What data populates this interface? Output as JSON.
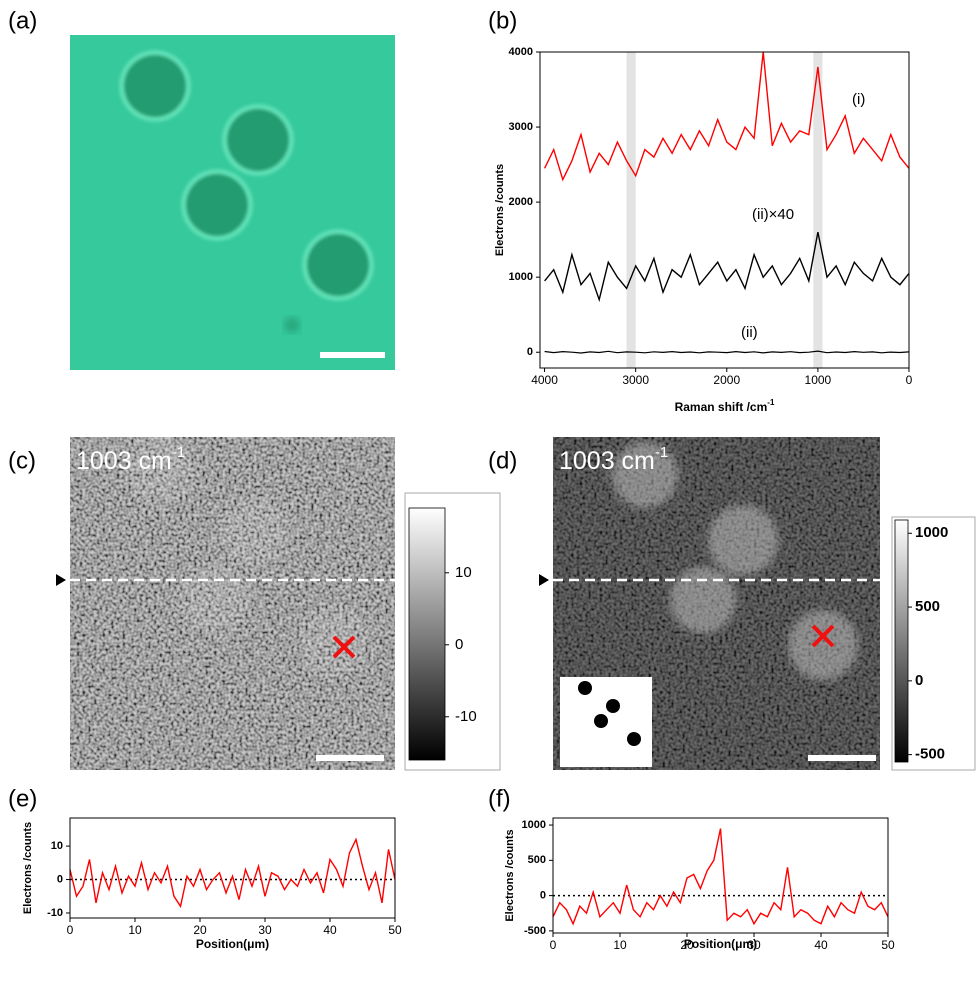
{
  "chart_data": [
    {
      "type": "image",
      "label": "(a)"
    },
    {
      "type": "line",
      "label": "(b)",
      "xlabel": "Raman shift /cm",
      "xlabel_sup": "-1",
      "ylabel": "Electrons /counts",
      "xlim": [
        4050,
        0
      ],
      "xticks": [
        4000,
        3000,
        2000,
        1000,
        0
      ],
      "ylim": [
        -210,
        4000
      ],
      "yticks": [
        0,
        1000,
        2000,
        3000,
        4000
      ],
      "highlight_ranges": [
        [
          3100,
          3000
        ],
        [
          1050,
          950
        ]
      ],
      "highlight_color": "#e3e3e3",
      "annotations": [
        "(i)",
        "(ii)×40",
        "(ii)"
      ],
      "x": [
        4000,
        3900,
        3800,
        3700,
        3600,
        3500,
        3400,
        3300,
        3200,
        3100,
        3000,
        2900,
        2800,
        2700,
        2600,
        2500,
        2400,
        2300,
        2200,
        2100,
        2000,
        1900,
        1800,
        1700,
        1600,
        1500,
        1400,
        1300,
        1200,
        1100,
        1000,
        900,
        800,
        700,
        600,
        500,
        400,
        300,
        200,
        100,
        0
      ],
      "series": [
        {
          "name": "(i)",
          "color": "#ff0000",
          "values": [
            2450,
            2700,
            2300,
            2550,
            2900,
            2400,
            2650,
            2500,
            2800,
            2550,
            2350,
            2700,
            2600,
            2850,
            2650,
            2900,
            2700,
            2950,
            2750,
            3100,
            2800,
            2700,
            3000,
            2850,
            4000,
            2750,
            3050,
            2800,
            2950,
            2900,
            3800,
            2700,
            2900,
            3150,
            2650,
            2850,
            2700,
            2550,
            2900,
            2600,
            2450
          ]
        },
        {
          "name": "(ii)×40",
          "color": "#000000",
          "values": [
            950,
            1100,
            800,
            1300,
            900,
            1050,
            700,
            1200,
            1000,
            850,
            1150,
            950,
            1250,
            800,
            1100,
            1000,
            1300,
            900,
            1050,
            1200,
            950,
            1100,
            850,
            1300,
            1000,
            1150,
            900,
            1050,
            1250,
            950,
            1600,
            1000,
            1150,
            900,
            1200,
            1050,
            950,
            1250,
            1000,
            900,
            1050
          ]
        },
        {
          "name": "(ii)",
          "color": "#000000",
          "values": [
            10,
            -5,
            8,
            0,
            -10,
            5,
            -3,
            12,
            -6,
            4,
            0,
            -8,
            6,
            -2,
            9,
            -4,
            3,
            -7,
            5,
            0,
            -5,
            8,
            -3,
            6,
            -9,
            4,
            -2,
            7,
            -5,
            1,
            15,
            -6,
            3,
            -4,
            8,
            -1,
            5,
            -7,
            2,
            -3,
            4
          ]
        }
      ]
    },
    {
      "type": "heatmap",
      "label": "(c)",
      "annotation": "1003 cm",
      "annotation_sup": "-1",
      "clim": [
        -16,
        19
      ],
      "cticks": [
        10,
        0,
        -10
      ]
    },
    {
      "type": "heatmap",
      "label": "(d)",
      "annotation": "1003 cm",
      "annotation_sup": "-1",
      "clim": [
        -550,
        1090
      ],
      "cticks": [
        1000,
        500,
        0,
        -500
      ]
    },
    {
      "type": "line",
      "label": "(e)",
      "xlabel": "Position(μm)",
      "ylabel": "Electrons /counts",
      "xlim": [
        0,
        50
      ],
      "xticks": [
        0,
        10,
        20,
        30,
        40,
        50
      ],
      "ylim": [
        -11.5,
        18.4
      ],
      "yticks": [
        10,
        0,
        -10
      ],
      "hline": 0,
      "x": [
        0,
        1,
        2,
        3,
        4,
        5,
        6,
        7,
        8,
        9,
        10,
        11,
        12,
        13,
        14,
        15,
        16,
        17,
        18,
        19,
        20,
        21,
        22,
        23,
        24,
        25,
        26,
        27,
        28,
        29,
        30,
        31,
        32,
        33,
        34,
        35,
        36,
        37,
        38,
        39,
        40,
        41,
        42,
        43,
        44,
        45,
        46,
        47,
        48,
        49,
        50
      ],
      "series": [
        {
          "name": null,
          "color": "#ff0000",
          "values": [
            3,
            -5,
            -2,
            6,
            -7,
            2,
            -3,
            4,
            -4,
            1,
            -2,
            5,
            -3,
            2,
            -1,
            4,
            -5,
            -8,
            1,
            -2,
            3,
            -3,
            0,
            2,
            -4,
            1,
            -6,
            3,
            -2,
            4,
            -5,
            2,
            1,
            -3,
            0,
            -2,
            3,
            -1,
            2,
            -4,
            6,
            3,
            -2,
            8,
            12,
            4,
            -3,
            2,
            -7,
            9,
            0
          ]
        }
      ]
    },
    {
      "type": "line",
      "label": "(f)",
      "xlabel": "Position(μm)",
      "ylabel": "Electrons /counts",
      "xlim": [
        0,
        50
      ],
      "xticks": [
        0,
        10,
        20,
        30,
        40,
        50
      ],
      "ylim": [
        -530,
        1100
      ],
      "yticks": [
        1000,
        500,
        0,
        -500
      ],
      "hline": 0,
      "x": [
        0,
        1,
        2,
        3,
        4,
        5,
        6,
        7,
        8,
        9,
        10,
        11,
        12,
        13,
        14,
        15,
        16,
        17,
        18,
        19,
        20,
        21,
        22,
        23,
        24,
        25,
        26,
        27,
        28,
        29,
        30,
        31,
        32,
        33,
        34,
        35,
        36,
        37,
        38,
        39,
        40,
        41,
        42,
        43,
        44,
        45,
        46,
        47,
        48,
        49,
        50
      ],
      "series": [
        {
          "name": null,
          "color": "#ff0000",
          "values": [
            -300,
            -100,
            -200,
            -400,
            -150,
            -250,
            50,
            -300,
            -200,
            -100,
            -250,
            150,
            -200,
            -300,
            -100,
            -200,
            0,
            -150,
            50,
            -100,
            250,
            300,
            100,
            350,
            500,
            950,
            -350,
            -250,
            -300,
            -200,
            -400,
            -250,
            -300,
            -100,
            -200,
            400,
            -300,
            -200,
            -250,
            -350,
            -400,
            -150,
            -300,
            -100,
            -200,
            -250,
            50,
            -150,
            -200,
            -100,
            -300
          ]
        }
      ]
    }
  ]
}
